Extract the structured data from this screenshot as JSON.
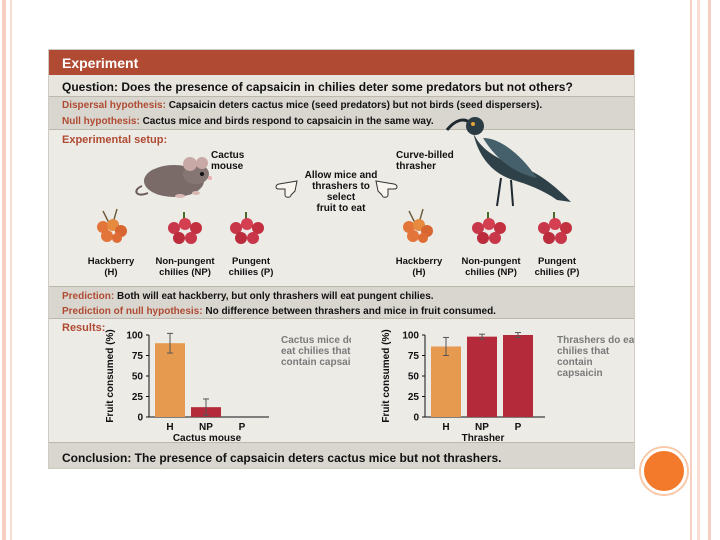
{
  "header": {
    "title": "Experiment"
  },
  "question": {
    "label": "Question:",
    "text": "Does the presence of capsaicin in chilies deter some predators but not others?"
  },
  "dispersal_hypothesis": {
    "label": "Dispersal hypothesis:",
    "text": "Capsaicin deters cactus mice (seed predators) but not birds (seed dispersers)."
  },
  "null_hypothesis": {
    "label": "Null hypothesis:",
    "text": "Cactus mice and birds respond to capsaicin in the same way."
  },
  "setup": {
    "title": "Experimental setup:",
    "mouse_label": [
      "Cactus",
      "mouse"
    ],
    "bird_label": [
      "Curve-billed",
      "thrasher"
    ],
    "allow_text": [
      "Allow mice and",
      "thrashers to",
      "select",
      "fruit to eat"
    ],
    "fruits_left": [
      {
        "name": "Hackberry",
        "code": "(H)"
      },
      {
        "name": "Non-pungent",
        "code": "chilies (NP)"
      },
      {
        "name": "Pungent",
        "code": "chilies (P)"
      }
    ],
    "fruits_right": [
      {
        "name": "Hackberry",
        "code": "(H)"
      },
      {
        "name": "Non-pungent",
        "code": "chilies (NP)"
      },
      {
        "name": "Pungent",
        "code": "chilies (P)"
      }
    ]
  },
  "prediction": {
    "label": "Prediction:",
    "text": "Both will eat hackberry, but only thrashers will eat pungent chilies."
  },
  "null_prediction": {
    "label": "Prediction of null hypothesis:",
    "text": "No difference between thrashers and mice in fruit consumed."
  },
  "results": {
    "title": "Results:"
  },
  "conclusion": {
    "label": "Conclusion:",
    "text": "The presence of capsaicin deters cactus mice but not thrashers."
  },
  "colors": {
    "header": "#b04a32",
    "hackberry": "#e59a4f",
    "chili": "#b52a3a",
    "band_dark": "#d8d6cf",
    "band_light": "#ecebe6"
  },
  "chart_data": [
    {
      "type": "bar",
      "categories": [
        "H",
        "NP",
        "P"
      ],
      "values": [
        90,
        12,
        0
      ],
      "errors": [
        12,
        10,
        0
      ],
      "ylabel": "Fruit consumed (%)",
      "xlabel": "Cactus mouse",
      "ylim": [
        0,
        100
      ],
      "yticks": [
        0,
        25,
        50,
        75,
        100
      ],
      "bar_colors": [
        "#e59a4f",
        "#b52a3a",
        "#b52a3a"
      ],
      "annotation": [
        "Cactus mice don't",
        "eat chilies that",
        "contain capsaicin"
      ]
    },
    {
      "type": "bar",
      "categories": [
        "H",
        "NP",
        "P"
      ],
      "values": [
        86,
        98,
        100
      ],
      "errors": [
        11,
        3,
        3
      ],
      "ylabel": "Fruit consumed (%)",
      "xlabel": "Thrasher",
      "ylim": [
        0,
        100
      ],
      "yticks": [
        0,
        25,
        50,
        75,
        100
      ],
      "bar_colors": [
        "#e59a4f",
        "#b52a3a",
        "#b52a3a"
      ],
      "annotation": [
        "Thrashers do eat",
        "chilies that",
        "contain",
        "capsaicin"
      ]
    }
  ]
}
